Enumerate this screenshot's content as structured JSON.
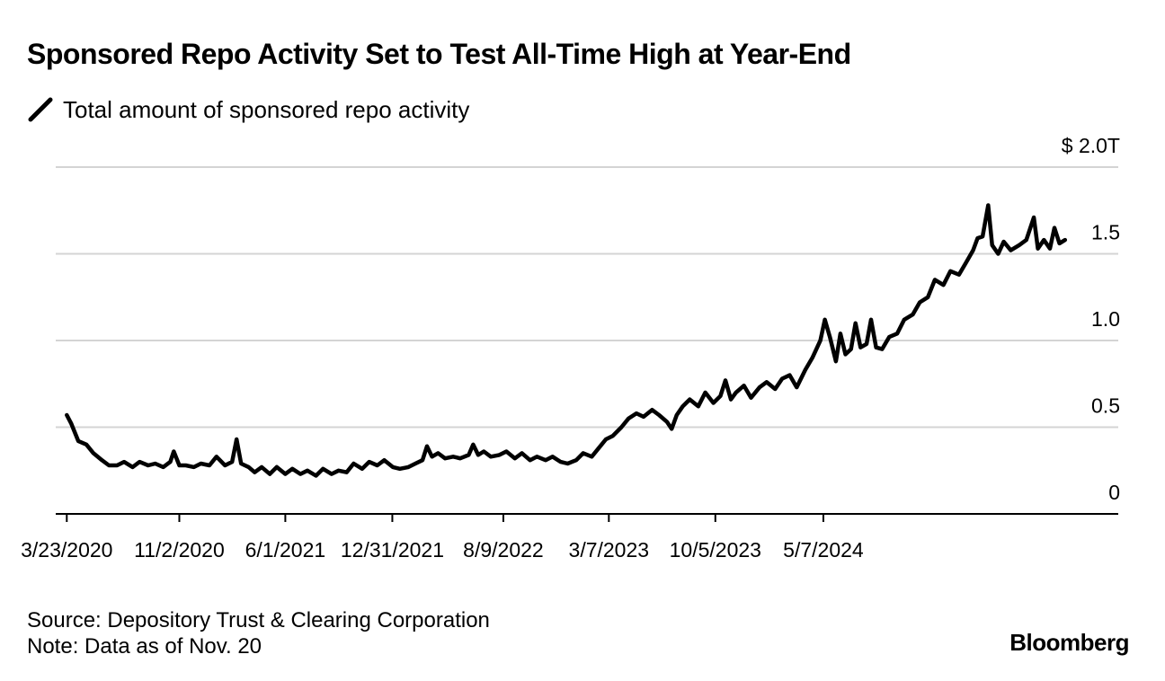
{
  "chart_data": {
    "type": "line",
    "title": "Sponsored Repo Activity Set to Test All-Time High at Year-End",
    "series": [
      {
        "name": "Total amount of sponsored repo activity",
        "color": "#000000",
        "points": [
          [
            "2020-03-23",
            0.57
          ],
          [
            "2020-04-01",
            0.52
          ],
          [
            "2020-04-15",
            0.42
          ],
          [
            "2020-05-01",
            0.4
          ],
          [
            "2020-05-15",
            0.35
          ],
          [
            "2020-06-01",
            0.31
          ],
          [
            "2020-06-15",
            0.28
          ],
          [
            "2020-07-01",
            0.28
          ],
          [
            "2020-07-15",
            0.3
          ],
          [
            "2020-08-01",
            0.27
          ],
          [
            "2020-08-15",
            0.3
          ],
          [
            "2020-09-01",
            0.28
          ],
          [
            "2020-09-15",
            0.29
          ],
          [
            "2020-10-01",
            0.27
          ],
          [
            "2020-10-15",
            0.3
          ],
          [
            "2020-10-22",
            0.36
          ],
          [
            "2020-11-02",
            0.28
          ],
          [
            "2020-11-15",
            0.28
          ],
          [
            "2020-12-01",
            0.27
          ],
          [
            "2020-12-15",
            0.29
          ],
          [
            "2021-01-01",
            0.28
          ],
          [
            "2021-01-15",
            0.33
          ],
          [
            "2021-02-01",
            0.28
          ],
          [
            "2021-02-15",
            0.3
          ],
          [
            "2021-02-24",
            0.43
          ],
          [
            "2021-03-05",
            0.29
          ],
          [
            "2021-03-20",
            0.27
          ],
          [
            "2021-04-01",
            0.24
          ],
          [
            "2021-04-15",
            0.27
          ],
          [
            "2021-05-01",
            0.23
          ],
          [
            "2021-05-15",
            0.27
          ],
          [
            "2021-06-01",
            0.23
          ],
          [
            "2021-06-15",
            0.26
          ],
          [
            "2021-07-01",
            0.23
          ],
          [
            "2021-07-15",
            0.25
          ],
          [
            "2021-08-01",
            0.22
          ],
          [
            "2021-08-15",
            0.26
          ],
          [
            "2021-09-01",
            0.23
          ],
          [
            "2021-09-15",
            0.25
          ],
          [
            "2021-10-01",
            0.24
          ],
          [
            "2021-10-15",
            0.29
          ],
          [
            "2021-11-01",
            0.26
          ],
          [
            "2021-11-15",
            0.3
          ],
          [
            "2021-12-01",
            0.28
          ],
          [
            "2021-12-15",
            0.31
          ],
          [
            "2022-01-01",
            0.27
          ],
          [
            "2022-01-15",
            0.26
          ],
          [
            "2022-02-01",
            0.27
          ],
          [
            "2022-02-15",
            0.29
          ],
          [
            "2022-03-01",
            0.31
          ],
          [
            "2022-03-10",
            0.39
          ],
          [
            "2022-03-20",
            0.33
          ],
          [
            "2022-04-01",
            0.35
          ],
          [
            "2022-04-15",
            0.32
          ],
          [
            "2022-05-01",
            0.33
          ],
          [
            "2022-05-15",
            0.32
          ],
          [
            "2022-06-01",
            0.34
          ],
          [
            "2022-06-10",
            0.4
          ],
          [
            "2022-06-20",
            0.34
          ],
          [
            "2022-07-01",
            0.36
          ],
          [
            "2022-07-15",
            0.33
          ],
          [
            "2022-08-01",
            0.34
          ],
          [
            "2022-08-15",
            0.36
          ],
          [
            "2022-09-01",
            0.32
          ],
          [
            "2022-09-15",
            0.35
          ],
          [
            "2022-10-01",
            0.31
          ],
          [
            "2022-10-15",
            0.33
          ],
          [
            "2022-11-01",
            0.31
          ],
          [
            "2022-11-15",
            0.33
          ],
          [
            "2022-12-01",
            0.3
          ],
          [
            "2022-12-15",
            0.29
          ],
          [
            "2023-01-01",
            0.31
          ],
          [
            "2023-01-15",
            0.35
          ],
          [
            "2023-02-01",
            0.33
          ],
          [
            "2023-02-15",
            0.38
          ],
          [
            "2023-03-01",
            0.43
          ],
          [
            "2023-03-15",
            0.45
          ],
          [
            "2023-04-01",
            0.5
          ],
          [
            "2023-04-15",
            0.55
          ],
          [
            "2023-05-01",
            0.58
          ],
          [
            "2023-05-15",
            0.56
          ],
          [
            "2023-06-01",
            0.6
          ],
          [
            "2023-06-15",
            0.57
          ],
          [
            "2023-07-01",
            0.53
          ],
          [
            "2023-07-10",
            0.49
          ],
          [
            "2023-07-20",
            0.57
          ],
          [
            "2023-08-01",
            0.62
          ],
          [
            "2023-08-15",
            0.66
          ],
          [
            "2023-09-01",
            0.62
          ],
          [
            "2023-09-15",
            0.7
          ],
          [
            "2023-10-01",
            0.64
          ],
          [
            "2023-10-15",
            0.68
          ],
          [
            "2023-10-25",
            0.77
          ],
          [
            "2023-11-05",
            0.66
          ],
          [
            "2023-11-15",
            0.7
          ],
          [
            "2023-12-01",
            0.74
          ],
          [
            "2023-12-15",
            0.67
          ],
          [
            "2024-01-01",
            0.73
          ],
          [
            "2024-01-15",
            0.76
          ],
          [
            "2024-02-01",
            0.72
          ],
          [
            "2024-02-15",
            0.78
          ],
          [
            "2024-03-01",
            0.8
          ],
          [
            "2024-03-15",
            0.73
          ],
          [
            "2024-04-01",
            0.83
          ],
          [
            "2024-04-15",
            0.9
          ],
          [
            "2024-05-01",
            1.0
          ],
          [
            "2024-05-10",
            1.12
          ],
          [
            "2024-05-20",
            1.02
          ],
          [
            "2024-06-01",
            0.88
          ],
          [
            "2024-06-10",
            1.04
          ],
          [
            "2024-06-20",
            0.92
          ],
          [
            "2024-07-01",
            0.95
          ],
          [
            "2024-07-10",
            1.1
          ],
          [
            "2024-07-20",
            0.96
          ],
          [
            "2024-08-01",
            0.98
          ],
          [
            "2024-08-10",
            1.12
          ],
          [
            "2024-08-20",
            0.96
          ],
          [
            "2024-09-01",
            0.95
          ],
          [
            "2024-09-15",
            1.02
          ],
          [
            "2024-10-01",
            1.04
          ],
          [
            "2024-10-15",
            1.12
          ],
          [
            "2024-11-01",
            1.15
          ],
          [
            "2024-11-15",
            1.22
          ],
          [
            "2024-12-01",
            1.25
          ],
          [
            "2024-12-15",
            1.35
          ],
          [
            "2025-01-01",
            1.32
          ],
          [
            "2025-01-15",
            1.4
          ],
          [
            "2025-02-01",
            1.38
          ],
          [
            "2025-02-15",
            1.45
          ],
          [
            "2025-03-01",
            1.52
          ],
          [
            "2025-03-10",
            1.59
          ],
          [
            "2025-03-20",
            1.6
          ],
          [
            "2025-03-31",
            1.78
          ],
          [
            "2025-04-08",
            1.55
          ],
          [
            "2025-04-20",
            1.5
          ],
          [
            "2025-05-01",
            1.57
          ],
          [
            "2025-05-15",
            1.52
          ],
          [
            "2025-06-01",
            1.55
          ],
          [
            "2025-06-15",
            1.58
          ],
          [
            "2025-06-30",
            1.71
          ],
          [
            "2025-07-08",
            1.53
          ],
          [
            "2025-07-20",
            1.58
          ],
          [
            "2025-08-01",
            1.53
          ],
          [
            "2025-08-10",
            1.65
          ],
          [
            "2025-08-20",
            1.56
          ],
          [
            "2025-08-31",
            1.58
          ]
        ]
      }
    ],
    "x_ticks": [
      "3/23/2020",
      "11/2/2020",
      "6/1/2021",
      "12/31/2021",
      "8/9/2022",
      "3/7/2023",
      "10/5/2023",
      "5/7/2024"
    ],
    "x_tick_dates": [
      "2020-03-23",
      "2020-11-02",
      "2021-06-01",
      "2021-12-31",
      "2022-08-09",
      "2023-03-07",
      "2023-10-05",
      "2024-05-07"
    ],
    "xlim": [
      "2020-03-01",
      "2025-12-15"
    ],
    "y_ticks": [
      0,
      0.5,
      1.0,
      1.5,
      2.0
    ],
    "y_tick_labels": [
      "0",
      "0.5",
      "1.0",
      "1.5",
      "$ 2.0T"
    ],
    "ylim": [
      0,
      2.0
    ],
    "grid": true,
    "legend_position": "top-left",
    "source": "Source: Depository Trust & Clearing Corporation",
    "note": "Note: Data as of Nov. 20",
    "brand": "Bloomberg"
  }
}
